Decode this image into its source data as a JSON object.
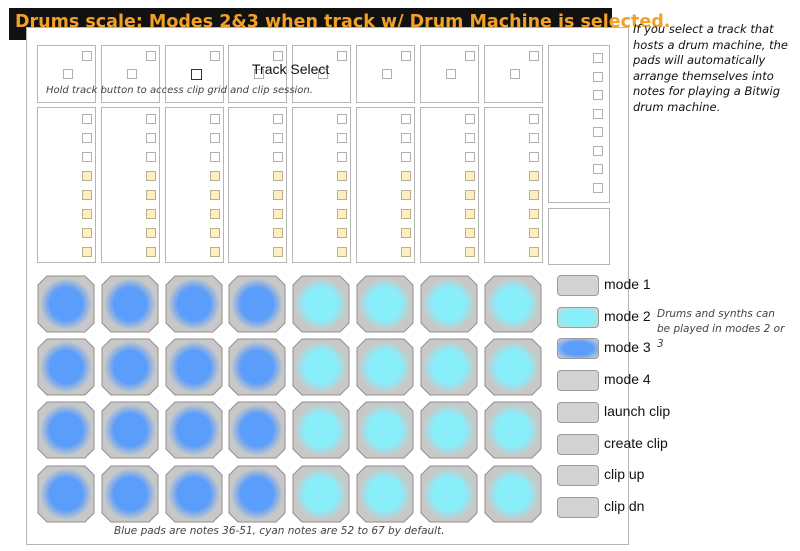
{
  "title": "Drums scale: Modes 2&3 when track w/ Drum Machine is selected.",
  "side_note": "If you select a track that hosts a drum machine, the pads will automatically arrange themselves into notes for playing a Bitwig drum machine.",
  "track_select_label": "Track Select",
  "hold_note": "Hold track button to access clip grid and clip session.",
  "drum_note": "Drums and synths can be played in modes 2 or 3",
  "bottom_note": "Blue pads are notes 36-51, cyan notes are 52 to 67 by default.",
  "mode_buttons": [
    {
      "label": "mode 1",
      "state": "gray"
    },
    {
      "label": "mode 2",
      "state": "cyan"
    },
    {
      "label": "mode 3",
      "state": "blue"
    },
    {
      "label": "mode 4",
      "state": "gray"
    },
    {
      "label": "launch clip",
      "state": "gray"
    },
    {
      "label": "create clip",
      "state": "gray"
    },
    {
      "label": "clip up",
      "state": "gray"
    },
    {
      "label": "clip dn",
      "state": "gray"
    }
  ],
  "pad_rows": [
    [
      "blue",
      "blue",
      "blue",
      "blue",
      "cyan",
      "cyan",
      "cyan",
      "cyan"
    ],
    [
      "blue",
      "blue",
      "blue",
      "blue",
      "cyan",
      "cyan",
      "cyan",
      "cyan"
    ],
    [
      "blue",
      "blue",
      "blue",
      "blue",
      "cyan",
      "cyan",
      "cyan",
      "cyan"
    ],
    [
      "blue",
      "blue",
      "blue",
      "blue",
      "cyan",
      "cyan",
      "cyan",
      "cyan"
    ]
  ],
  "clip_column_lights": [
    "off",
    "off",
    "off",
    "yellow",
    "yellow",
    "yellow",
    "yellow",
    "yellow"
  ],
  "colors": {
    "title_bg": "#111111",
    "title_text": "#f3a126",
    "pad_blue": "#5a9dfa",
    "pad_cyan": "#88eefa",
    "pad_frame": "#c8c8c8",
    "light_yellow": "#fdf0bc",
    "button_gray": "#d3d3d3"
  }
}
